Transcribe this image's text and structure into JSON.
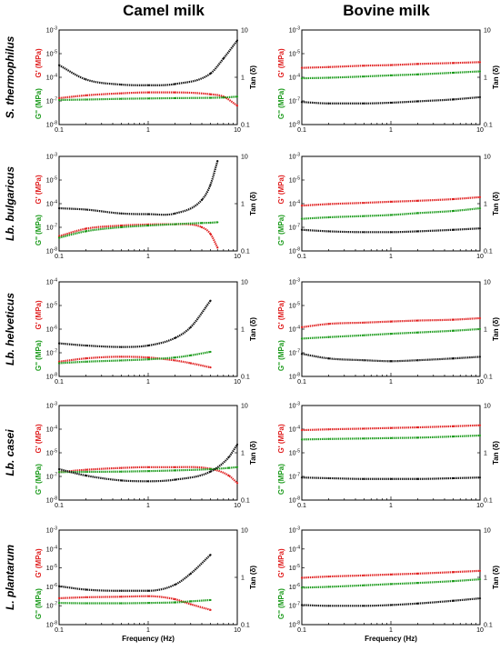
{
  "figure": {
    "column_titles": [
      "Camel milk",
      "Bovine milk"
    ],
    "row_labels": [
      "S. thermophilus",
      "Lb. bulgaricus",
      "Lb. helveticus",
      "Lb. casei",
      "L. plantarum"
    ],
    "colors": {
      "G_prime": "#e02020",
      "G_double_prime": "#1a9a1a",
      "tan_delta": "#111111"
    }
  },
  "chart_data": [
    {
      "type": "line",
      "row": "S. thermophilus",
      "column": "Camel milk",
      "x": [
        0.1,
        0.2,
        0.5,
        1,
        2,
        5,
        7,
        10
      ],
      "ylabel_left_top": "G' (MPa)",
      "ylabel_left_bottom": "G'' (MPa)",
      "ylabel_right": "Tan (δ)",
      "xlabel": "",
      "x_ticks": [
        "0.1",
        "1",
        "10"
      ],
      "left_ticks": [
        "10-3",
        "10-5",
        "10-4",
        "10-7",
        "10-8"
      ],
      "right_ticks": [
        "10",
        "1",
        "0.1"
      ],
      "xlim": [
        0.1,
        10
      ],
      "ylim_left": [
        1e-08,
        0.001
      ],
      "ylim_right": [
        0.1,
        10
      ],
      "log_scale": true,
      "series": [
        {
          "name": "G'",
          "axis": "left",
          "values": [
            2.5e-07,
            3.5e-07,
            4.5e-07,
            5e-07,
            5e-07,
            4e-07,
            3e-07,
            1e-07
          ]
        },
        {
          "name": "G''",
          "axis": "left",
          "values": [
            2e-07,
            2.1e-07,
            2.3e-07,
            2.4e-07,
            2.5e-07,
            2.6e-07,
            2.7e-07,
            3e-07
          ]
        },
        {
          "name": "Tan (δ)",
          "axis": "right",
          "values": [
            1.8,
            0.9,
            0.7,
            0.68,
            0.72,
            1.2,
            2.5,
            6
          ]
        }
      ]
    },
    {
      "type": "line",
      "row": "S. thermophilus",
      "column": "Bovine milk",
      "x": [
        0.1,
        0.2,
        0.5,
        1,
        2,
        5,
        10
      ],
      "ylabel_left_top": "G' (MPa)",
      "ylabel_left_bottom": "G'' (MPa)",
      "ylabel_right": "Tan (δ)",
      "xlabel": "",
      "x_ticks": [
        "0.1",
        "1",
        "10"
      ],
      "left_ticks": [
        "10-3",
        "10-5",
        "10-4",
        "10-7",
        "10-8"
      ],
      "right_ticks": [
        "10",
        "1",
        "0.1"
      ],
      "xlim": [
        0.1,
        10
      ],
      "ylim_left": [
        1e-08,
        0.001
      ],
      "ylim_right": [
        0.1,
        10
      ],
      "log_scale": true,
      "series": [
        {
          "name": "G'",
          "axis": "left",
          "values": [
            1e-05,
            1.1e-05,
            1.3e-05,
            1.4e-05,
            1.6e-05,
            1.8e-05,
            2e-05
          ]
        },
        {
          "name": "G''",
          "axis": "left",
          "values": [
            2.8e-06,
            3e-06,
            3.5e-06,
            4e-06,
            4.5e-06,
            5.5e-06,
            6.5e-06
          ]
        },
        {
          "name": "Tan (δ)",
          "axis": "right",
          "values": [
            0.3,
            0.28,
            0.28,
            0.29,
            0.31,
            0.34,
            0.38
          ]
        }
      ]
    },
    {
      "type": "line",
      "row": "Lb. bulgaricus",
      "column": "Camel milk",
      "x": [
        0.1,
        0.2,
        0.5,
        1,
        2,
        4,
        5,
        6
      ],
      "ylabel_left_top": "G' (MPa)",
      "ylabel_left_bottom": "G'' (MPa)",
      "ylabel_right": "Tan (δ)",
      "xlabel": "",
      "x_ticks": [
        "0.1",
        "1",
        "10"
      ],
      "left_ticks": [
        "10-3",
        "10-5",
        "10-4",
        "10-7",
        "10-8"
      ],
      "right_ticks": [
        "10",
        "1",
        "0.1"
      ],
      "xlim": [
        0.1,
        10
      ],
      "ylim_left": [
        1e-08,
        0.001
      ],
      "ylim_right": [
        0.1,
        10
      ],
      "log_scale": true,
      "series": [
        {
          "name": "G'",
          "axis": "left",
          "values": [
            6e-08,
            1.5e-07,
            2.2e-07,
            2.5e-07,
            2.6e-07,
            1.8e-07,
            8e-08,
            1.5e-08
          ]
        },
        {
          "name": "G''",
          "axis": "left",
          "values": [
            5e-08,
            1.1e-07,
            1.8e-07,
            2.2e-07,
            2.6e-07,
            3e-07,
            3.1e-07,
            3.3e-07
          ]
        },
        {
          "name": "Tan (δ)",
          "axis": "right",
          "values": [
            0.8,
            0.75,
            0.62,
            0.6,
            0.62,
            1.2,
            2.5,
            8
          ]
        }
      ]
    },
    {
      "type": "line",
      "row": "Lb. bulgaricus",
      "column": "Bovine milk",
      "x": [
        0.1,
        0.2,
        0.5,
        1,
        2,
        5,
        10
      ],
      "ylabel_left_top": "G' (MPa)",
      "ylabel_left_bottom": "G'' (MPa)",
      "ylabel_right": "Tan (δ)",
      "xlabel": "",
      "x_ticks": [
        "0.1",
        "1",
        "10"
      ],
      "left_ticks": [
        "10-3",
        "10-5",
        "10-4",
        "10-7",
        "10-8"
      ],
      "right_ticks": [
        "10",
        "1",
        "0.1"
      ],
      "xlim": [
        0.1,
        10
      ],
      "ylim_left": [
        1e-08,
        0.001
      ],
      "ylim_right": [
        0.1,
        10
      ],
      "log_scale": true,
      "series": [
        {
          "name": "G'",
          "axis": "left",
          "values": [
            2.5e-06,
            3e-06,
            3.5e-06,
            4e-06,
            4.5e-06,
            5.5e-06,
            7e-06
          ]
        },
        {
          "name": "G''",
          "axis": "left",
          "values": [
            5e-07,
            6e-07,
            7e-07,
            8e-07,
            1e-06,
            1.3e-06,
            1.8e-06
          ]
        },
        {
          "name": "Tan (δ)",
          "axis": "right",
          "values": [
            0.28,
            0.26,
            0.25,
            0.25,
            0.26,
            0.28,
            0.3
          ]
        }
      ]
    },
    {
      "type": "line",
      "row": "Lb. helveticus",
      "column": "Camel milk",
      "x": [
        0.1,
        0.2,
        0.5,
        1,
        2,
        3,
        5
      ],
      "ylabel_left_top": "G' (MPa)",
      "ylabel_left_bottom": "G'' (MPa)",
      "ylabel_right": "Tan (δ)",
      "xlabel": "",
      "x_ticks": [
        "0.1",
        "1",
        "10"
      ],
      "left_ticks": [
        "10-4",
        "10-5",
        "10-6",
        "10-7",
        "10-8"
      ],
      "right_ticks": [
        "10",
        "1",
        "0.1"
      ],
      "xlim": [
        0.1,
        10
      ],
      "ylim_left": [
        1e-08,
        0.001
      ],
      "ylim_right": [
        0.1,
        10
      ],
      "log_scale": true,
      "series": [
        {
          "name": "G'",
          "axis": "left",
          "values": [
            6e-08,
            9e-08,
            1.1e-07,
            1e-07,
            7e-08,
            5e-08,
            3e-08
          ]
        },
        {
          "name": "G''",
          "axis": "left",
          "values": [
            5e-08,
            6e-08,
            7e-08,
            8e-08,
            1e-07,
            1.3e-07,
            2e-07
          ]
        },
        {
          "name": "Tan (δ)",
          "axis": "right",
          "values": [
            0.5,
            0.45,
            0.42,
            0.45,
            0.65,
            1.1,
            4
          ]
        }
      ]
    },
    {
      "type": "line",
      "row": "Lb. helveticus",
      "column": "Bovine milk",
      "x": [
        0.1,
        0.2,
        0.5,
        1,
        2,
        5,
        10
      ],
      "ylabel_left_top": "G' (MPa)",
      "ylabel_left_bottom": "G'' (MPa)",
      "ylabel_right": "Tan (δ)",
      "xlabel": "",
      "x_ticks": [
        "0.1",
        "1",
        "10"
      ],
      "left_ticks": [
        "10-3",
        "10-5",
        "10-4",
        "10-7",
        "10-8"
      ],
      "right_ticks": [
        "10",
        "1",
        "0.1"
      ],
      "xlim": [
        0.1,
        10
      ],
      "ylim_left": [
        1e-08,
        0.001
      ],
      "ylim_right": [
        0.1,
        10
      ],
      "log_scale": true,
      "series": [
        {
          "name": "G'",
          "axis": "left",
          "values": [
            4e-06,
            6e-06,
            7e-06,
            8e-06,
            9e-06,
            1e-05,
            1.2e-05
          ]
        },
        {
          "name": "G''",
          "axis": "left",
          "values": [
            1e-06,
            1.2e-06,
            1.5e-06,
            1.8e-06,
            2.1e-06,
            2.6e-06,
            3.2e-06
          ]
        },
        {
          "name": "Tan (δ)",
          "axis": "right",
          "values": [
            0.3,
            0.24,
            0.22,
            0.21,
            0.22,
            0.24,
            0.26
          ]
        }
      ]
    },
    {
      "type": "line",
      "row": "Lb. casei",
      "column": "Camel milk",
      "x": [
        0.1,
        0.2,
        0.5,
        1,
        2,
        5,
        8,
        10
      ],
      "ylabel_left_top": "G' (MPa)",
      "ylabel_left_bottom": "G'' (MPa)",
      "ylabel_right": "Tan (δ)",
      "xlabel": "",
      "x_ticks": [
        "0.1",
        "1",
        "10"
      ],
      "left_ticks": [
        "10-3",
        "10-4",
        "10-5",
        "10-7",
        "10-8"
      ],
      "right_ticks": [
        "10",
        "1",
        "0.1"
      ],
      "xlim": [
        0.1,
        10
      ],
      "ylim_left": [
        1e-08,
        0.001
      ],
      "ylim_right": [
        0.1,
        10
      ],
      "log_scale": true,
      "series": [
        {
          "name": "G'",
          "axis": "left",
          "values": [
            3e-07,
            4e-07,
            5e-07,
            5.5e-07,
            5.5e-07,
            4.5e-07,
            2e-07,
            8e-08
          ]
        },
        {
          "name": "G''",
          "axis": "left",
          "values": [
            3e-07,
            3.1e-07,
            3.2e-07,
            3.4e-07,
            3.7e-07,
            4.3e-07,
            5e-07,
            5.5e-07
          ]
        },
        {
          "name": "Tan (δ)",
          "axis": "right",
          "values": [
            0.45,
            0.33,
            0.26,
            0.25,
            0.27,
            0.4,
            0.8,
            1.5
          ]
        }
      ]
    },
    {
      "type": "line",
      "row": "Lb. casei",
      "column": "Bovine milk",
      "x": [
        0.1,
        0.2,
        0.5,
        1,
        2,
        5,
        10
      ],
      "ylabel_left_top": "G' (MPa)",
      "ylabel_left_bottom": "G'' (MPa)",
      "ylabel_right": "Tan (δ)",
      "xlabel": "",
      "x_ticks": [
        "0.1",
        "1",
        "10"
      ],
      "left_ticks": [
        "10-3",
        "10-4",
        "10-5",
        "10-7",
        "10-8"
      ],
      "right_ticks": [
        "10",
        "1",
        "0.1"
      ],
      "xlim": [
        0.1,
        10
      ],
      "ylim_left": [
        1e-08,
        0.001
      ],
      "ylim_right": [
        0.1,
        10
      ],
      "log_scale": true,
      "series": [
        {
          "name": "G'",
          "axis": "left",
          "values": [
            5e-05,
            5.5e-05,
            6e-05,
            6.5e-05,
            7e-05,
            8e-05,
            9e-05
          ]
        },
        {
          "name": "G''",
          "axis": "left",
          "values": [
            1.6e-05,
            1.7e-05,
            1.8e-05,
            1.9e-05,
            2e-05,
            2.3e-05,
            2.6e-05
          ]
        },
        {
          "name": "Tan (δ)",
          "axis": "right",
          "values": [
            0.3,
            0.29,
            0.28,
            0.28,
            0.28,
            0.29,
            0.3
          ]
        }
      ]
    },
    {
      "type": "line",
      "row": "L. plantarum",
      "column": "Camel milk",
      "x": [
        0.1,
        0.2,
        0.5,
        1,
        2,
        3,
        5
      ],
      "ylabel_left_top": "G' (MPa)",
      "ylabel_left_bottom": "G'' (MPa)",
      "ylabel_right": "Tan (δ)",
      "xlabel": "Frequency (Hz)",
      "x_ticks": [
        "0.1",
        "1",
        "10"
      ],
      "left_ticks": [
        "10-3",
        "10-4",
        "10-5",
        "10-6",
        "10-7",
        "10-8"
      ],
      "right_ticks": [
        "10",
        "1",
        "0.1"
      ],
      "xlim": [
        0.1,
        10
      ],
      "ylim_left": [
        1e-08,
        0.001
      ],
      "ylim_right": [
        0.1,
        10
      ],
      "log_scale": true,
      "series": [
        {
          "name": "G'",
          "axis": "left",
          "values": [
            2.5e-07,
            2.8e-07,
            3e-07,
            3.2e-07,
            2.2e-07,
            1.2e-07,
            6e-08
          ]
        },
        {
          "name": "G''",
          "axis": "left",
          "values": [
            1.4e-07,
            1.35e-07,
            1.35e-07,
            1.4e-07,
            1.5e-07,
            1.7e-07,
            2e-07
          ]
        },
        {
          "name": "Tan (δ)",
          "axis": "right",
          "values": [
            0.65,
            0.55,
            0.52,
            0.52,
            0.7,
            1.2,
            3
          ]
        }
      ]
    },
    {
      "type": "line",
      "row": "L. plantarum",
      "column": "Bovine milk",
      "x": [
        0.1,
        0.2,
        0.5,
        1,
        2,
        5,
        10
      ],
      "ylabel_left_top": "G' (MPa)",
      "ylabel_left_bottom": "G'' (MPa)",
      "ylabel_right": "Tan (δ)",
      "xlabel": "Frequency (Hz)",
      "x_ticks": [
        "0.1",
        "1",
        "10"
      ],
      "left_ticks": [
        "10-3",
        "10-4",
        "10-5",
        "10-6",
        "10-7",
        "10-8"
      ],
      "right_ticks": [
        "10",
        "1",
        "0.1"
      ],
      "xlim": [
        0.1,
        10
      ],
      "ylim_left": [
        1e-08,
        0.001
      ],
      "ylim_right": [
        0.1,
        10
      ],
      "log_scale": true,
      "series": [
        {
          "name": "G'",
          "axis": "left",
          "values": [
            3e-06,
            3.5e-06,
            4e-06,
            4.5e-06,
            5e-06,
            6e-06,
            7e-06
          ]
        },
        {
          "name": "G''",
          "axis": "left",
          "values": [
            9e-07,
            1e-06,
            1.2e-06,
            1.4e-06,
            1.6e-06,
            2e-06,
            2.5e-06
          ]
        },
        {
          "name": "Tan (δ)",
          "axis": "right",
          "values": [
            0.26,
            0.25,
            0.25,
            0.26,
            0.28,
            0.32,
            0.36
          ]
        }
      ]
    }
  ]
}
